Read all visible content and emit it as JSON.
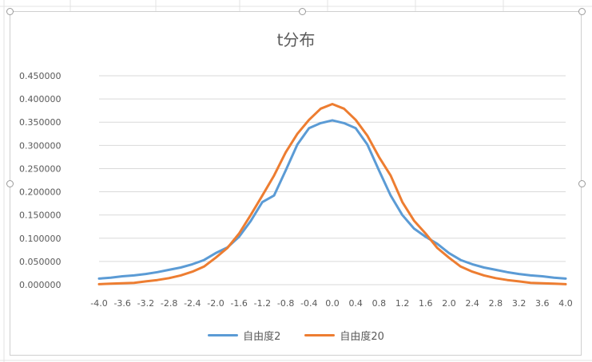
{
  "chart_data": {
    "type": "line",
    "title": "t分布",
    "xlabel": "",
    "ylabel": "",
    "ylim": [
      0,
      0.45
    ],
    "yticks": [
      "0.000000",
      "0.050000",
      "0.100000",
      "0.150000",
      "0.200000",
      "0.250000",
      "0.300000",
      "0.350000",
      "0.400000",
      "0.450000"
    ],
    "grid": true,
    "legend_position": "bottom",
    "categories": [
      "-4.0",
      "-3.8",
      "-3.6",
      "-3.4",
      "-3.2",
      "-3.0",
      "-2.8",
      "-2.6",
      "-2.4",
      "-2.2",
      "-2.0",
      "-1.8",
      "-1.6",
      "-1.4",
      "-1.2",
      "-1.0",
      "-0.8",
      "-0.6",
      "-0.4",
      "-0.2",
      "0.0",
      "0.2",
      "0.4",
      "0.6",
      "0.8",
      "1.0",
      "1.2",
      "1.4",
      "1.6",
      "1.8",
      "2.0",
      "2.2",
      "2.4",
      "2.6",
      "2.8",
      "3.0",
      "3.2",
      "3.4",
      "3.6",
      "3.8",
      "4.0"
    ],
    "xtick_labels": [
      "-4.0",
      "-3.6",
      "-3.2",
      "-2.8",
      "-2.4",
      "-2.0",
      "-1.6",
      "-1.2",
      "-0.8",
      "-0.4",
      "0.0",
      "0.4",
      "0.8",
      "1.2",
      "1.6",
      "2.0",
      "2.4",
      "2.8",
      "3.2",
      "3.6",
      "4.0"
    ],
    "series": [
      {
        "name": "自由度2",
        "color": "#5B9BD5",
        "values": [
          0.013,
          0.015,
          0.018,
          0.02,
          0.023,
          0.027,
          0.032,
          0.037,
          0.044,
          0.053,
          0.068,
          0.08,
          0.103,
          0.137,
          0.178,
          0.192,
          0.246,
          0.302,
          0.337,
          0.348,
          0.354,
          0.348,
          0.337,
          0.302,
          0.246,
          0.192,
          0.15,
          0.121,
          0.103,
          0.088,
          0.068,
          0.053,
          0.044,
          0.037,
          0.032,
          0.027,
          0.023,
          0.02,
          0.018,
          0.015,
          0.013
        ]
      },
      {
        "name": "自由度20",
        "color": "#ED7D31",
        "values": [
          0.001,
          0.002,
          0.003,
          0.004,
          0.007,
          0.01,
          0.014,
          0.02,
          0.028,
          0.039,
          0.058,
          0.079,
          0.11,
          0.15,
          0.192,
          0.235,
          0.285,
          0.325,
          0.355,
          0.379,
          0.389,
          0.379,
          0.355,
          0.321,
          0.275,
          0.235,
          0.178,
          0.138,
          0.11,
          0.079,
          0.058,
          0.039,
          0.028,
          0.02,
          0.014,
          0.01,
          0.007,
          0.004,
          0.003,
          0.002,
          0.001
        ]
      }
    ]
  }
}
